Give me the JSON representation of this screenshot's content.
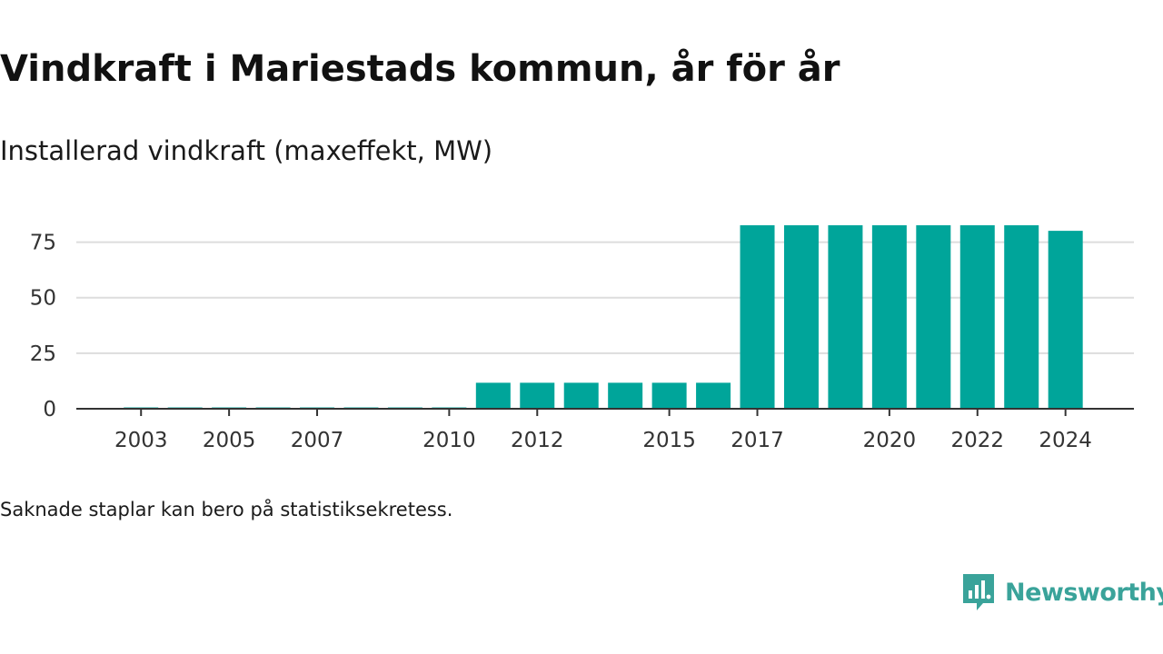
{
  "header": {
    "title": "Vindkraft i Mariestads kommun, år för år",
    "subtitle": "Installerad vindkraft (maxeffekt, MW)"
  },
  "footnote": "Saknade staplar kan bero på statistiksekretess.",
  "brand": {
    "name": "Newsworthy",
    "icon": "newsworthy-logo-icon",
    "color": "#3aa39a"
  },
  "colors": {
    "bar": "#00a59a",
    "grid": "#dddddd",
    "axis": "#333333"
  },
  "chart_data": {
    "type": "bar",
    "title": "Vindkraft i Mariestads kommun, år för år",
    "subtitle": "Installerad vindkraft (maxeffekt, MW)",
    "xlabel": "",
    "ylabel": "",
    "categories": [
      "2003",
      "2004",
      "2005",
      "2006",
      "2007",
      "2008",
      "2009",
      "2010",
      "2011",
      "2012",
      "2013",
      "2014",
      "2015",
      "2016",
      "2017",
      "2018",
      "2019",
      "2020",
      "2021",
      "2022",
      "2023",
      "2024"
    ],
    "values": [
      0.6,
      0.6,
      0.6,
      0.6,
      0.6,
      0.6,
      0.6,
      0.6,
      11.7,
      11.7,
      11.7,
      11.7,
      11.7,
      11.7,
      82.6,
      82.6,
      82.6,
      82.6,
      82.6,
      82.6,
      82.6,
      80.1
    ],
    "x_tick_labels": [
      "2003",
      "2005",
      "2007",
      "2010",
      "2012",
      "2015",
      "2017",
      "2020",
      "2022",
      "2024"
    ],
    "y_ticks": [
      0,
      25,
      50,
      75
    ],
    "ylim": [
      0,
      82.6
    ],
    "grid": true,
    "legend": "none"
  }
}
